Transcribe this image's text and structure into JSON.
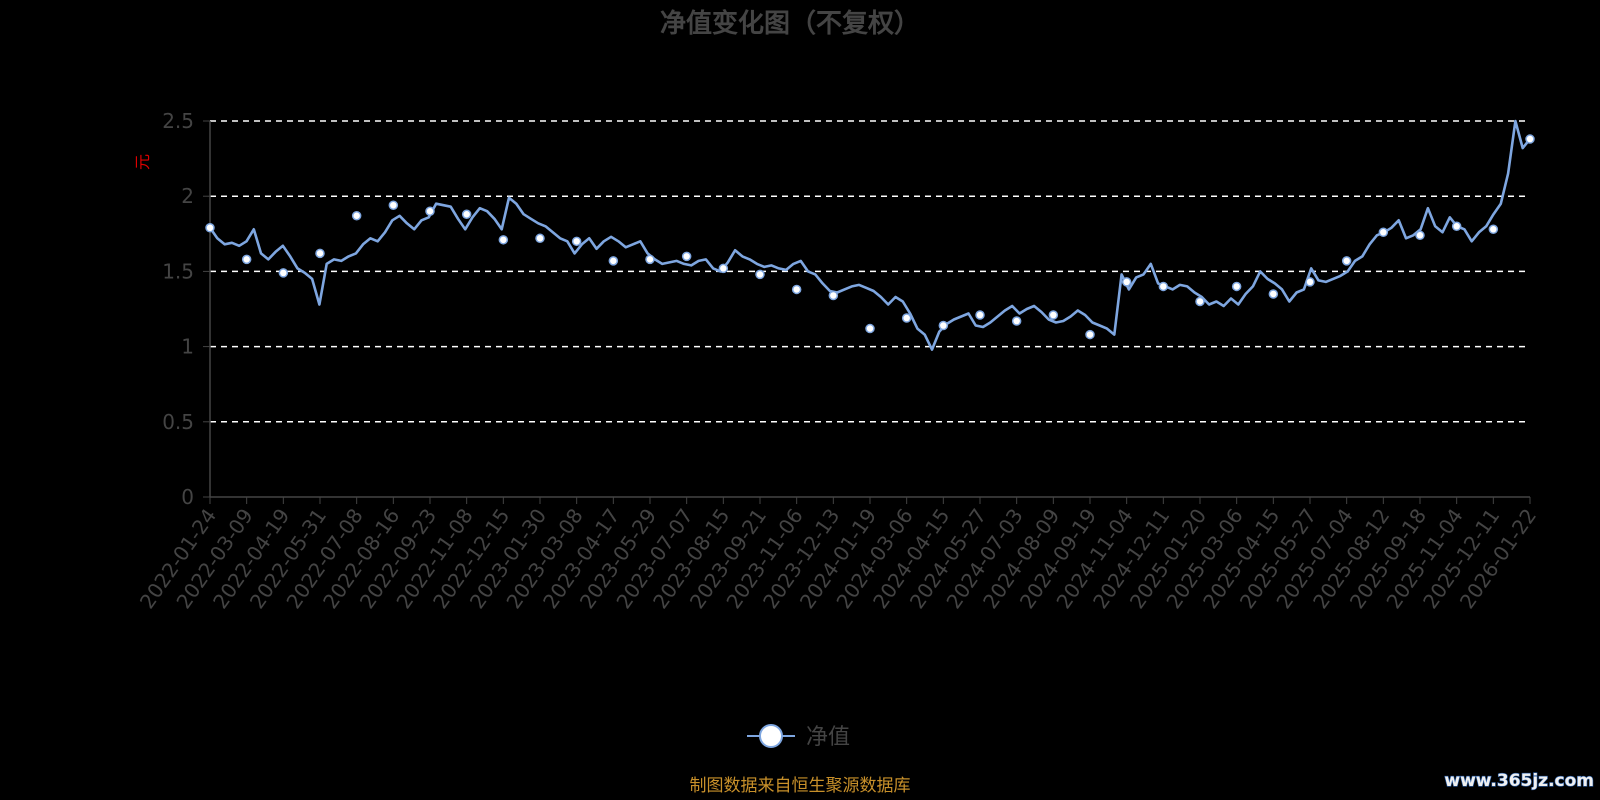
{
  "chart_data": {
    "type": "line",
    "title": "净值变化图（不复权）",
    "ylabel": "元",
    "ylim": [
      0,
      2.5
    ],
    "yticks": [
      "0",
      "0.5",
      "1",
      "1.5",
      "2",
      "2.5"
    ],
    "grid": true,
    "legend_position": "bottom-center",
    "categories": [
      "2022-01-24",
      "2022-03-09",
      "2022-04-19",
      "2022-05-31",
      "2022-07-08",
      "2022-08-16",
      "2022-09-23",
      "2022-11-08",
      "2022-12-15",
      "2023-01-30",
      "2023-03-08",
      "2023-04-17",
      "2023-05-29",
      "2023-07-07",
      "2023-08-15",
      "2023-09-21",
      "2023-11-06",
      "2023-12-13",
      "2024-01-19",
      "2024-03-06",
      "2024-04-15",
      "2024-05-27",
      "2024-07-03",
      "2024-08-09",
      "2024-09-19",
      "2024-11-04",
      "2024-12-11",
      "2025-01-20",
      "2025-03-06",
      "2025-04-15",
      "2025-05-27",
      "2025-07-04",
      "2025-08-12",
      "2025-09-18",
      "2025-11-04",
      "2025-12-11",
      "2026-01-22"
    ],
    "series": [
      {
        "name": "净值",
        "color": "#7ea6e0",
        "values": [
          1.79,
          1.58,
          1.49,
          1.62,
          1.87,
          1.94,
          1.9,
          1.88,
          1.71,
          1.72,
          1.7,
          1.57,
          1.58,
          1.6,
          1.52,
          1.48,
          1.38,
          1.34,
          1.12,
          1.19,
          1.14,
          1.21,
          1.17,
          1.21,
          1.08,
          1.43,
          1.4,
          1.3,
          1.4,
          1.35,
          1.43,
          1.57,
          1.76,
          1.74,
          1.8,
          1.78,
          2.38
        ],
        "detail": [
          1.79,
          1.72,
          1.68,
          1.69,
          1.67,
          1.7,
          1.78,
          1.62,
          1.58,
          1.63,
          1.67,
          1.6,
          1.52,
          1.49,
          1.45,
          1.28,
          1.55,
          1.58,
          1.57,
          1.6,
          1.62,
          1.68,
          1.72,
          1.7,
          1.76,
          1.84,
          1.87,
          1.82,
          1.78,
          1.84,
          1.86,
          1.95,
          1.94,
          1.93,
          1.85,
          1.78,
          1.86,
          1.92,
          1.9,
          1.85,
          1.78,
          1.99,
          1.95,
          1.88,
          1.85,
          1.82,
          1.8,
          1.76,
          1.72,
          1.7,
          1.62,
          1.68,
          1.72,
          1.65,
          1.7,
          1.73,
          1.7,
          1.66,
          1.68,
          1.7,
          1.62,
          1.58,
          1.55,
          1.56,
          1.57,
          1.55,
          1.54,
          1.57,
          1.58,
          1.52,
          1.5,
          1.56,
          1.64,
          1.6,
          1.58,
          1.55,
          1.53,
          1.54,
          1.52,
          1.51,
          1.55,
          1.57,
          1.5,
          1.48,
          1.42,
          1.37,
          1.36,
          1.38,
          1.4,
          1.41,
          1.39,
          1.37,
          1.33,
          1.28,
          1.33,
          1.3,
          1.22,
          1.12,
          1.08,
          0.98,
          1.1,
          1.15,
          1.18,
          1.2,
          1.22,
          1.14,
          1.13,
          1.16,
          1.2,
          1.24,
          1.27,
          1.22,
          1.25,
          1.27,
          1.23,
          1.18,
          1.16,
          1.17,
          1.2,
          1.24,
          1.21,
          1.16,
          1.14,
          1.12,
          1.08,
          1.48,
          1.38,
          1.46,
          1.48,
          1.55,
          1.42,
          1.4,
          1.38,
          1.41,
          1.4,
          1.36,
          1.33,
          1.28,
          1.3,
          1.27,
          1.32,
          1.28,
          1.35,
          1.4,
          1.5,
          1.45,
          1.42,
          1.38,
          1.3,
          1.36,
          1.38,
          1.52,
          1.44,
          1.43,
          1.45,
          1.47,
          1.5,
          1.57,
          1.6,
          1.68,
          1.74,
          1.76,
          1.79,
          1.84,
          1.72,
          1.74,
          1.78,
          1.92,
          1.8,
          1.76,
          1.86,
          1.8,
          1.78,
          1.7,
          1.76,
          1.8,
          1.88,
          1.95,
          2.15,
          2.5,
          2.32,
          2.38
        ]
      }
    ]
  },
  "legend": {
    "label": "净值"
  },
  "source_note": "制图数据来自恒生聚源数据库",
  "watermark": "www.365jz.com",
  "colors": {
    "background": "#000000",
    "line": "#7ea6e0",
    "grid": "#ffffff",
    "axis": "#444444",
    "title": "#444444",
    "unit": "#e00000",
    "source": "#c8902a"
  }
}
